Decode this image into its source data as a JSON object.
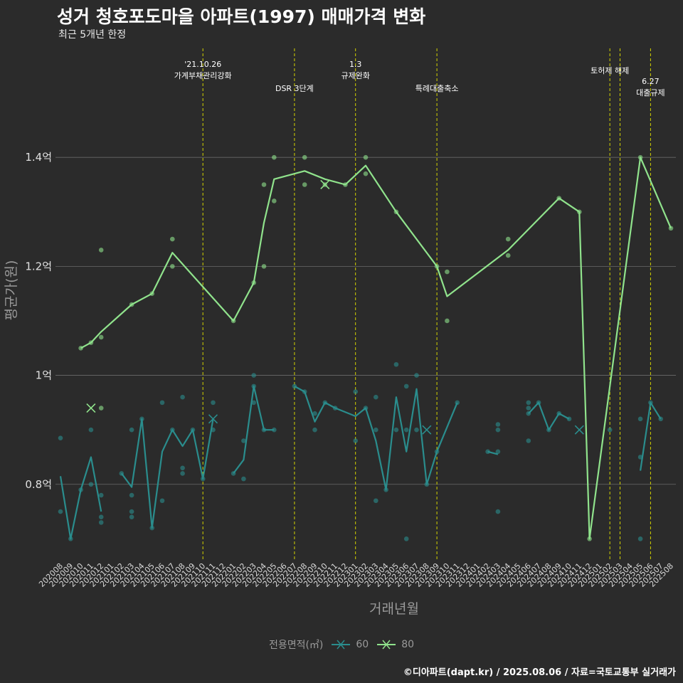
{
  "title": "성거 청호포도마을 아파트(1997) 매매가격 변화",
  "subtitle": "최근 5개년 한정",
  "footer": "©디아파트(dapt.kr) / 2025.08.06 / 자료=국토교통부 실거래가",
  "legend": {
    "title": "전용면적(㎡)",
    "items": [
      {
        "label": "60",
        "color": "#2a8d8d"
      },
      {
        "label": "80",
        "color": "#90e38c"
      }
    ]
  },
  "colors": {
    "background": "#2b2b2b",
    "grid": "#6a6a6a",
    "event_line": "#d4d400",
    "series_60": "#2a8d8d",
    "series_80": "#90e38c"
  },
  "chart_data": {
    "type": "line",
    "xlabel": "거래년월",
    "ylabel": "평균가(원)",
    "x": [
      "202008",
      "202009",
      "202010",
      "202011",
      "202012",
      "202101",
      "202102",
      "202103",
      "202104",
      "202105",
      "202106",
      "202107",
      "202108",
      "202109",
      "202110",
      "202111",
      "202112",
      "202201",
      "202202",
      "202203",
      "202204",
      "202205",
      "202206",
      "202207",
      "202208",
      "202209",
      "202210",
      "202211",
      "202212",
      "202301",
      "202302",
      "202303",
      "202304",
      "202305",
      "202306",
      "202307",
      "202308",
      "202309",
      "202310",
      "202311",
      "202312",
      "202401",
      "202402",
      "202403",
      "202404",
      "202405",
      "202406",
      "202407",
      "202408",
      "202409",
      "202410",
      "202411",
      "202412",
      "202501",
      "202502",
      "202503",
      "202504",
      "202505",
      "202506",
      "202507",
      "202508"
    ],
    "ylim": [
      0.66,
      1.6
    ],
    "y_ticks": [
      {
        "value": 0.8,
        "label": "0.8억"
      },
      {
        "value": 1.0,
        "label": "1억"
      },
      {
        "value": 1.2,
        "label": "1.2억"
      },
      {
        "value": 1.4,
        "label": "1.4억"
      }
    ],
    "y_unit": "억",
    "grid": true,
    "legend_position": "bottom",
    "events": [
      {
        "x": "202110",
        "label": [
          "'21.10.26",
          "가계부채관리강화"
        ]
      },
      {
        "x": "202207",
        "label": [
          "DSR 3단계"
        ]
      },
      {
        "x": "202301",
        "label": [
          "1.3",
          "규제완화"
        ]
      },
      {
        "x": "202309",
        "label": [
          "특례대출축소"
        ]
      },
      {
        "x": "202502",
        "label": [
          "토허제 해제"
        ]
      },
      {
        "x": "202503",
        "label": [
          ""
        ]
      },
      {
        "x": "202506",
        "label": [
          "6.27",
          "대출규제"
        ]
      }
    ],
    "series": [
      {
        "name": "60",
        "color": "#2a8d8d",
        "line": [
          [
            [
              "202008",
              0.815
            ],
            [
              "202009",
              0.7
            ],
            [
              "202010",
              0.79
            ],
            [
              "202011",
              0.85
            ],
            [
              "202012",
              0.75
            ]
          ],
          [
            [
              "202102",
              0.82
            ],
            [
              "202103",
              0.795
            ],
            [
              "202104",
              0.92
            ],
            [
              "202105",
              0.72
            ],
            [
              "202106",
              0.86
            ],
            [
              "202107",
              0.9
            ],
            [
              "202108",
              0.87
            ],
            [
              "202109",
              0.9
            ],
            [
              "202110",
              0.81
            ],
            [
              "202111",
              0.92
            ]
          ],
          [
            [
              "202201",
              0.82
            ],
            [
              "202202",
              0.845
            ],
            [
              "202203",
              0.98
            ],
            [
              "202204",
              0.9
            ],
            [
              "202205",
              0.9
            ]
          ],
          [
            [
              "202207",
              0.98
            ],
            [
              "202208",
              0.97
            ],
            [
              "202209",
              0.915
            ],
            [
              "202210",
              0.95
            ],
            [
              "202211",
              0.94
            ],
            [
              "202301",
              0.925
            ],
            [
              "202302",
              0.94
            ],
            [
              "202303",
              0.88
            ],
            [
              "202304",
              0.79
            ],
            [
              "202305",
              0.96
            ],
            [
              "202306",
              0.86
            ],
            [
              "202307",
              0.975
            ],
            [
              "202308",
              0.8
            ],
            [
              "202309",
              0.86
            ],
            [
              "202311",
              0.95
            ]
          ],
          [
            [
              "202402",
              0.86
            ],
            [
              "202403",
              0.855
            ]
          ],
          [
            [
              "202406",
              0.93
            ],
            [
              "202407",
              0.95
            ],
            [
              "202408",
              0.9
            ],
            [
              "202409",
              0.93
            ],
            [
              "202410",
              0.92
            ]
          ],
          [
            [
              "202505",
              0.825
            ],
            [
              "202506",
              0.95
            ],
            [
              "202507",
              0.92
            ]
          ]
        ],
        "points": [
          [
            "202008",
            0.885
          ],
          [
            "202008",
            0.75
          ],
          [
            "202009",
            0.7
          ],
          [
            "202010",
            0.79
          ],
          [
            "202011",
            0.9
          ],
          [
            "202011",
            0.8
          ],
          [
            "202012",
            0.78
          ],
          [
            "202012",
            0.74
          ],
          [
            "202012",
            0.73
          ],
          [
            "202102",
            0.82
          ],
          [
            "202103",
            0.9
          ],
          [
            "202103",
            0.78
          ],
          [
            "202103",
            0.75
          ],
          [
            "202103",
            0.74
          ],
          [
            "202104",
            0.92
          ],
          [
            "202105",
            0.72
          ],
          [
            "202106",
            0.95
          ],
          [
            "202106",
            0.77
          ],
          [
            "202107",
            0.9
          ],
          [
            "202108",
            0.96
          ],
          [
            "202108",
            0.83
          ],
          [
            "202108",
            0.82
          ],
          [
            "202109",
            0.9
          ],
          [
            "202110",
            0.81
          ],
          [
            "202111",
            0.95
          ],
          [
            "202111",
            0.9
          ],
          [
            "202201",
            0.82
          ],
          [
            "202202",
            0.88
          ],
          [
            "202202",
            0.81
          ],
          [
            "202203",
            1.0
          ],
          [
            "202203",
            0.98
          ],
          [
            "202203",
            0.95
          ],
          [
            "202204",
            0.9
          ],
          [
            "202205",
            0.9
          ],
          [
            "202207",
            0.98
          ],
          [
            "202208",
            0.97
          ],
          [
            "202209",
            0.93
          ],
          [
            "202209",
            0.9
          ],
          [
            "202210",
            0.95
          ],
          [
            "202211",
            0.94
          ],
          [
            "202301",
            0.97
          ],
          [
            "202301",
            0.88
          ],
          [
            "202302",
            0.94
          ],
          [
            "202303",
            0.96
          ],
          [
            "202303",
            0.9
          ],
          [
            "202303",
            0.77
          ],
          [
            "202304",
            0.79
          ],
          [
            "202305",
            1.02
          ],
          [
            "202305",
            0.9
          ],
          [
            "202306",
            0.98
          ],
          [
            "202306",
            0.9
          ],
          [
            "202306",
            0.7
          ],
          [
            "202307",
            1.0
          ],
          [
            "202307",
            0.9
          ],
          [
            "202308",
            0.8
          ],
          [
            "202309",
            0.86
          ],
          [
            "202311",
            0.95
          ],
          [
            "202402",
            0.86
          ],
          [
            "202403",
            0.91
          ],
          [
            "202403",
            0.9
          ],
          [
            "202403",
            0.86
          ],
          [
            "202403",
            0.75
          ],
          [
            "202406",
            0.95
          ],
          [
            "202406",
            0.94
          ],
          [
            "202406",
            0.93
          ],
          [
            "202406",
            0.88
          ],
          [
            "202407",
            0.95
          ],
          [
            "202408",
            0.9
          ],
          [
            "202409",
            0.93
          ],
          [
            "202410",
            0.92
          ],
          [
            "202502",
            0.9
          ],
          [
            "202505",
            0.92
          ],
          [
            "202505",
            0.85
          ],
          [
            "202505",
            0.7
          ],
          [
            "202506",
            0.95
          ],
          [
            "202507",
            0.92
          ]
        ],
        "x_markers": [
          [
            "202111",
            0.92
          ],
          [
            "202308",
            0.9
          ],
          [
            "202411",
            0.9
          ]
        ]
      },
      {
        "name": "80",
        "color": "#90e38c",
        "line": [
          [
            [
              "202010",
              1.05
            ],
            [
              "202011",
              1.06
            ],
            [
              "202012",
              1.08
            ],
            [
              "202103",
              1.13
            ],
            [
              "202105",
              1.15
            ],
            [
              "202107",
              1.225
            ],
            [
              "202201",
              1.1
            ],
            [
              "202203",
              1.17
            ],
            [
              "202204",
              1.28
            ],
            [
              "202205",
              1.36
            ],
            [
              "202208",
              1.375
            ],
            [
              "202210",
              1.36
            ],
            [
              "202212",
              1.35
            ],
            [
              "202302",
              1.385
            ],
            [
              "202305",
              1.3
            ],
            [
              "202309",
              1.2
            ],
            [
              "202310",
              1.145
            ],
            [
              "202404",
              1.23
            ],
            [
              "202409",
              1.325
            ],
            [
              "202411",
              1.3
            ],
            [
              "202412",
              0.7
            ],
            [
              "202505",
              1.4
            ],
            [
              "202508",
              1.27
            ]
          ]
        ],
        "points": [
          [
            "202010",
            1.05
          ],
          [
            "202011",
            1.06
          ],
          [
            "202012",
            1.23
          ],
          [
            "202012",
            1.07
          ],
          [
            "202012",
            0.94
          ],
          [
            "202103",
            1.13
          ],
          [
            "202105",
            1.15
          ],
          [
            "202107",
            1.25
          ],
          [
            "202107",
            1.2
          ],
          [
            "202201",
            1.1
          ],
          [
            "202203",
            1.17
          ],
          [
            "202204",
            1.35
          ],
          [
            "202204",
            1.2
          ],
          [
            "202205",
            1.4
          ],
          [
            "202205",
            1.32
          ],
          [
            "202208",
            1.4
          ],
          [
            "202208",
            1.35
          ],
          [
            "202210",
            1.35
          ],
          [
            "202212",
            1.35
          ],
          [
            "202302",
            1.4
          ],
          [
            "202302",
            1.37
          ],
          [
            "202305",
            1.3
          ],
          [
            "202309",
            1.2
          ],
          [
            "202310",
            1.19
          ],
          [
            "202310",
            1.1
          ],
          [
            "202404",
            1.25
          ],
          [
            "202404",
            1.22
          ],
          [
            "202409",
            1.325
          ],
          [
            "202411",
            1.3
          ],
          [
            "202412",
            0.7
          ],
          [
            "202505",
            1.4
          ],
          [
            "202508",
            1.27
          ]
        ],
        "x_markers": [
          [
            "202011",
            0.94
          ],
          [
            "202210",
            1.35
          ]
        ]
      }
    ]
  }
}
